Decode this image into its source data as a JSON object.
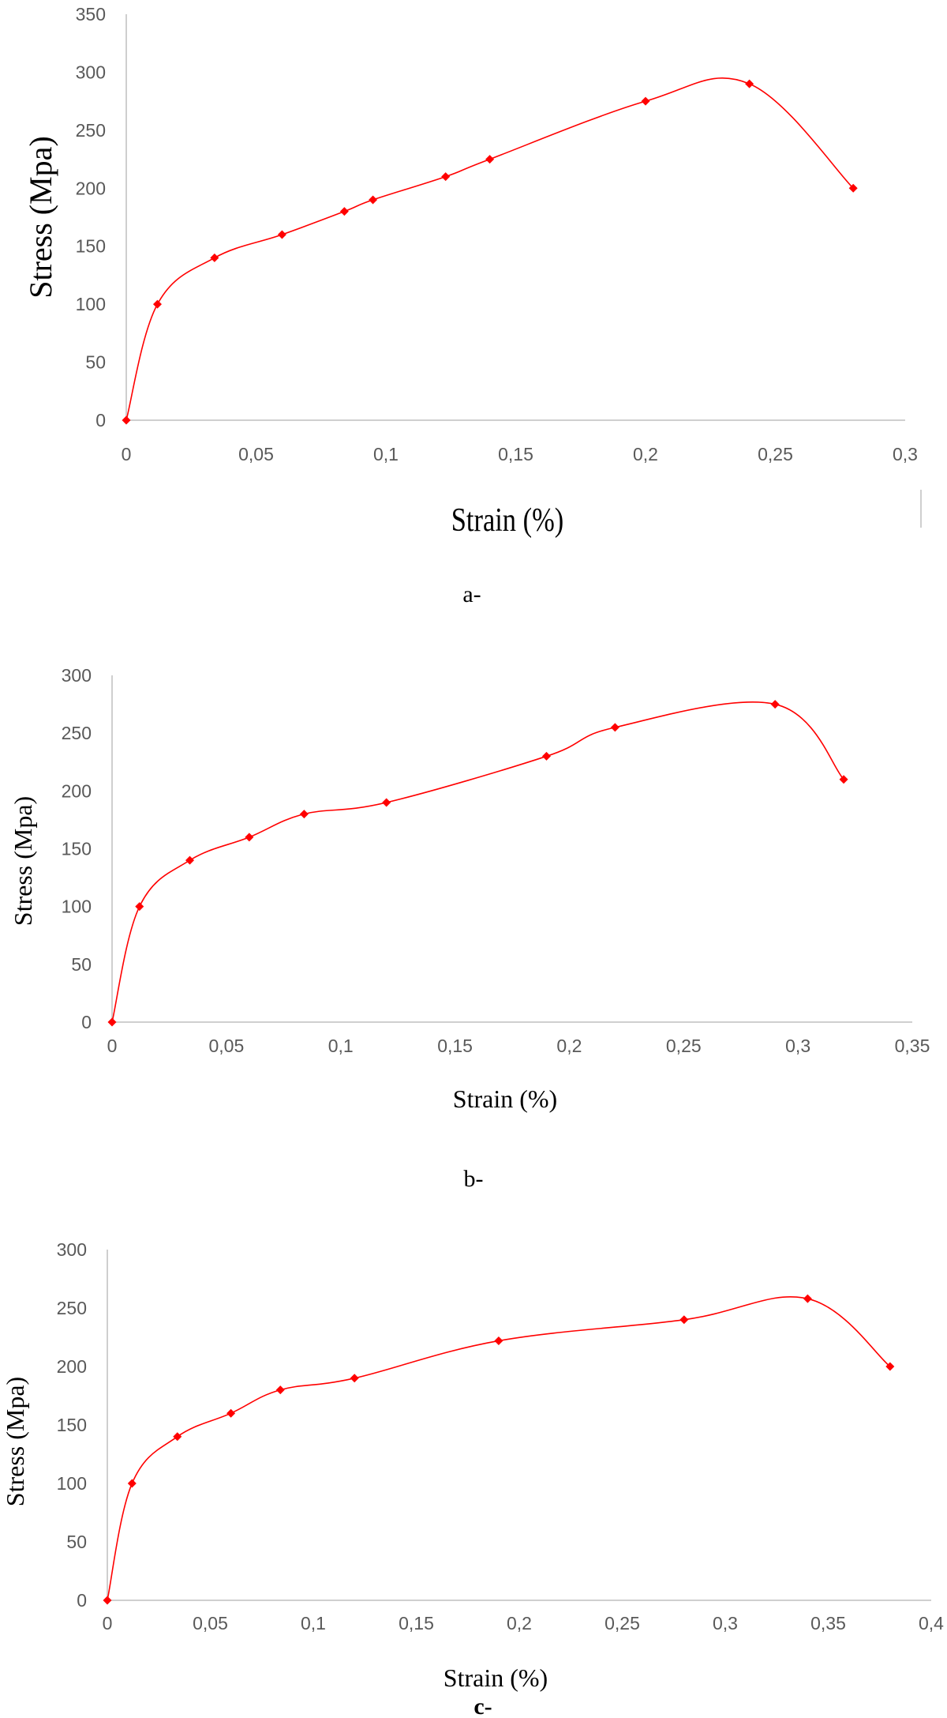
{
  "chart_data": [
    {
      "type": "scatter",
      "panel_label": "a-",
      "xlabel": "Strain (%)",
      "ylabel": "Stress (Mpa)",
      "xlim": [
        0,
        0.3
      ],
      "ylim": [
        0,
        350
      ],
      "x_ticks": [
        "0",
        "0,05",
        "0,1",
        "0,15",
        "0,2",
        "0,25",
        "0,3"
      ],
      "y_ticks": [
        "0",
        "50",
        "100",
        "150",
        "200",
        "250",
        "300",
        "350"
      ],
      "grid": false,
      "legend": "none",
      "color": "#ff0000",
      "series": [
        {
          "x": [
            0,
            0.012,
            0.034,
            0.06,
            0.084,
            0.095,
            0.123,
            0.14,
            0.2,
            0.24,
            0.28
          ],
          "y": [
            0,
            100,
            140,
            160,
            180,
            190,
            210,
            225,
            275,
            290,
            200
          ]
        }
      ]
    },
    {
      "type": "scatter",
      "panel_label": "b-",
      "xlabel": "Strain (%)",
      "ylabel": "Stress (Mpa)",
      "xlim": [
        0,
        0.35
      ],
      "ylim": [
        0,
        300
      ],
      "x_ticks": [
        "0",
        "0,05",
        "0,1",
        "0,15",
        "0,2",
        "0,25",
        "0,3",
        "0,35"
      ],
      "y_ticks": [
        "0",
        "50",
        "100",
        "150",
        "200",
        "250",
        "300"
      ],
      "grid": false,
      "legend": "none",
      "color": "#ff0000",
      "series": [
        {
          "x": [
            0,
            0.012,
            0.034,
            0.06,
            0.084,
            0.12,
            0.19,
            0.22,
            0.29,
            0.32
          ],
          "y": [
            0,
            100,
            140,
            160,
            180,
            190,
            230,
            255,
            275,
            210
          ]
        }
      ]
    },
    {
      "type": "scatter",
      "panel_label": "c-",
      "xlabel": "Strain (%)",
      "ylabel": "Stress (Mpa)",
      "xlim": [
        0,
        0.4
      ],
      "ylim": [
        0,
        300
      ],
      "x_ticks": [
        "0",
        "0,05",
        "0,1",
        "0,15",
        "0,2",
        "0,25",
        "0,3",
        "0,35",
        "0,4"
      ],
      "y_ticks": [
        "0",
        "50",
        "100",
        "150",
        "200",
        "250",
        "300"
      ],
      "grid": false,
      "legend": "none",
      "color": "#ff0000",
      "series": [
        {
          "x": [
            0,
            0.012,
            0.034,
            0.06,
            0.084,
            0.12,
            0.19,
            0.28,
            0.34,
            0.38
          ],
          "y": [
            0,
            100,
            140,
            160,
            180,
            190,
            222,
            240,
            258,
            200
          ]
        }
      ]
    }
  ]
}
